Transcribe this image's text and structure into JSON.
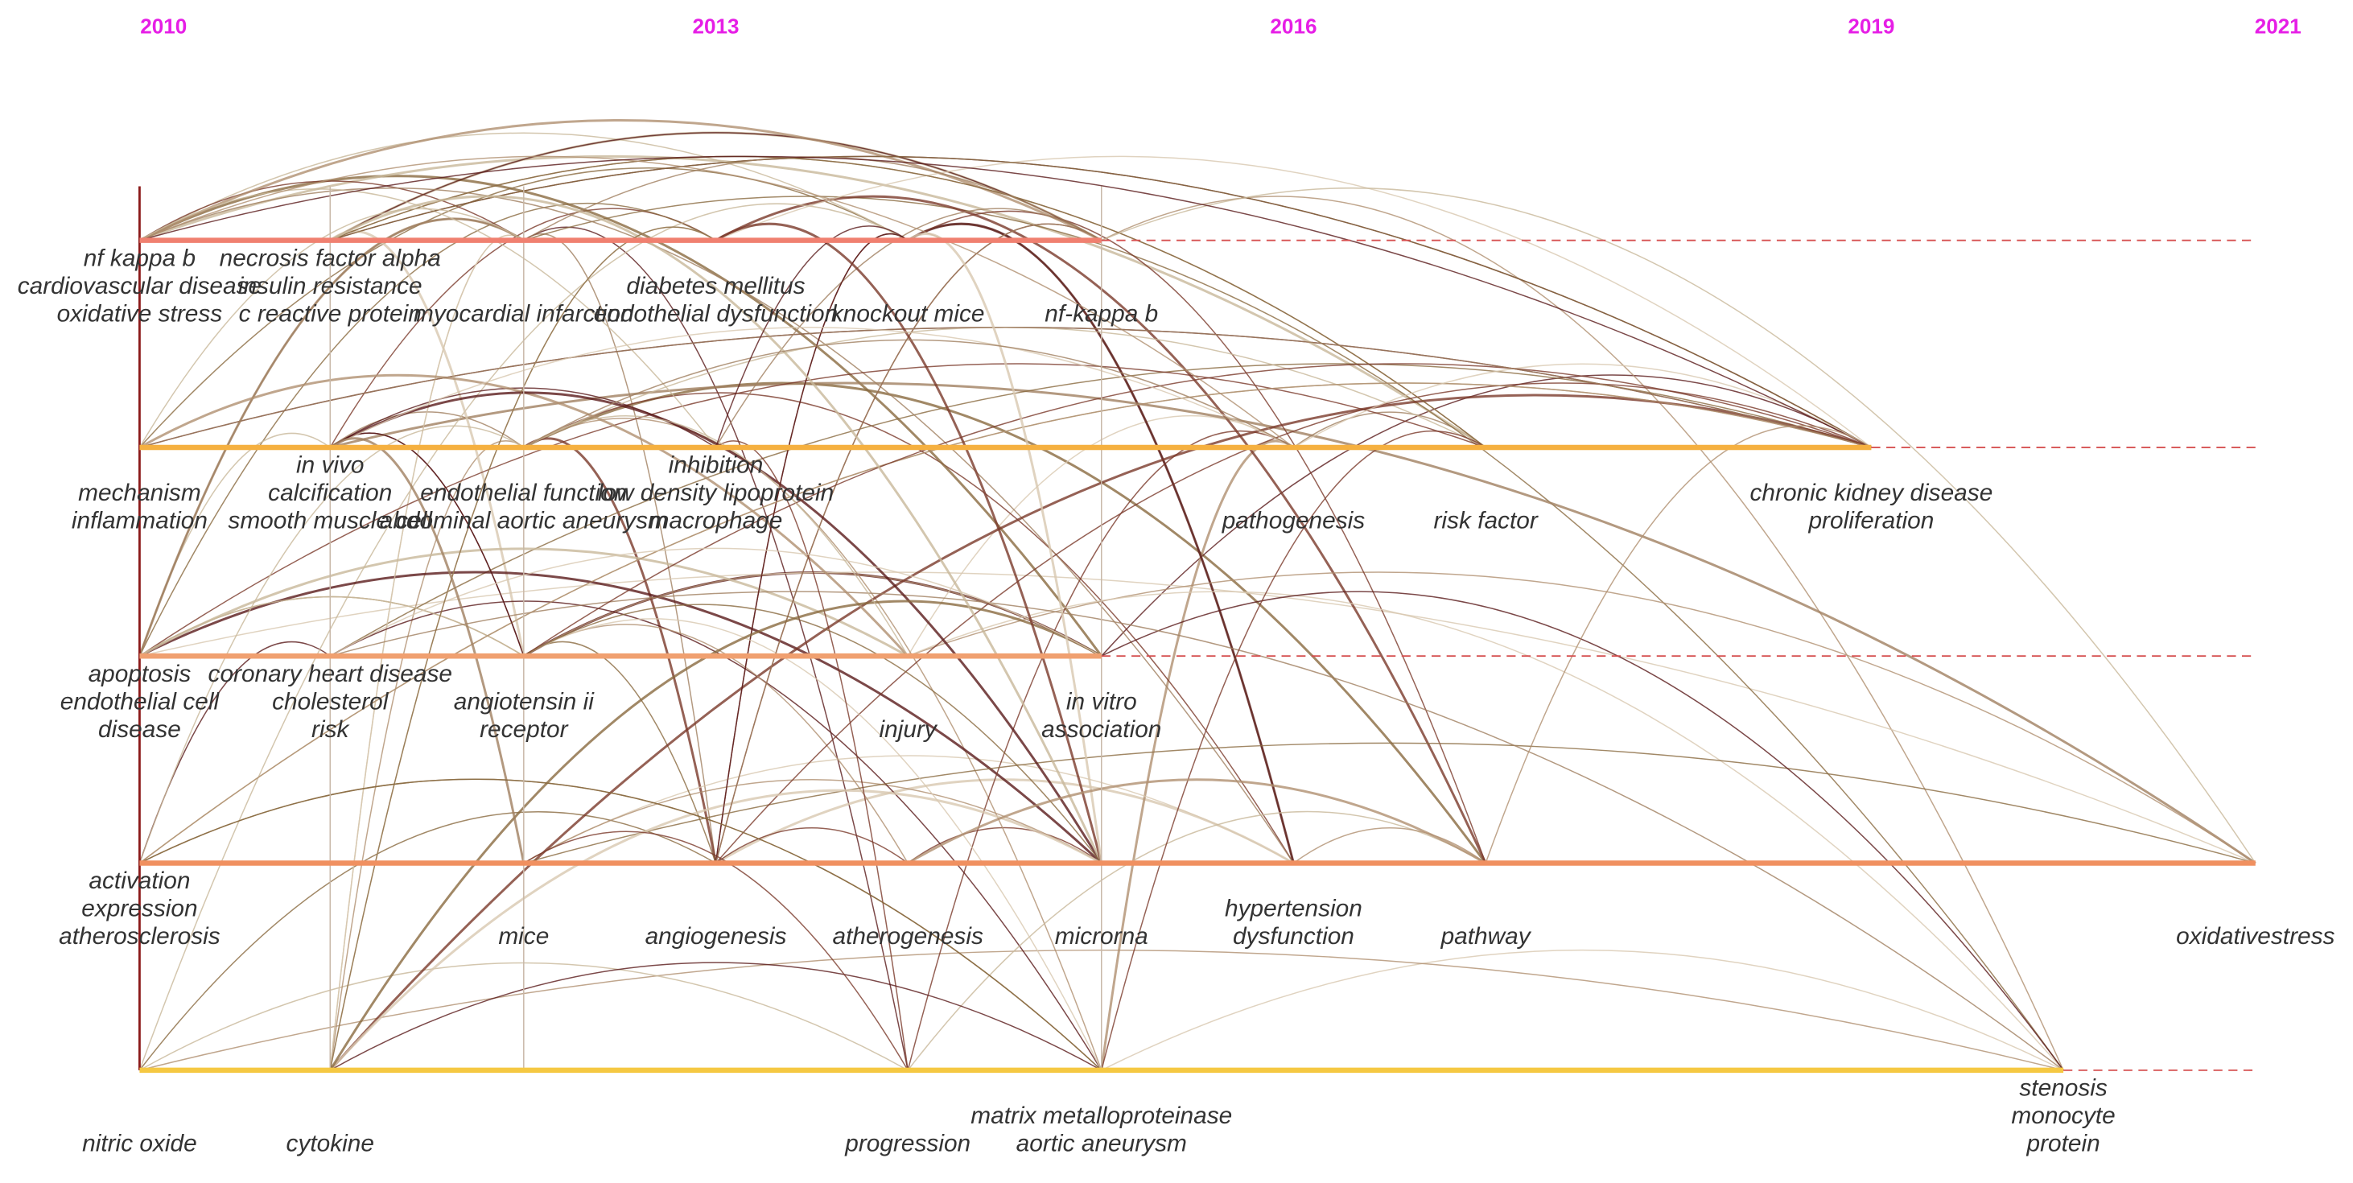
{
  "years": [
    "2010",
    "2013",
    "2016",
    "2019",
    "2021"
  ],
  "clusters": [
    {
      "nodes": [
        {
          "labels": [
            "nf kappa b",
            "cardiovascular disease",
            "oxidative stress"
          ]
        },
        {
          "labels": [
            "necrosis factor alpha",
            "insulin resistance",
            "c reactive protein"
          ]
        },
        {
          "labels": [
            "myocardial infarction"
          ]
        },
        {
          "labels": [
            "diabetes mellitus",
            "endothelial dysfunction"
          ]
        },
        {
          "labels": [
            "knockout mice"
          ]
        },
        {
          "labels": [
            "nf-kappa b"
          ]
        }
      ]
    },
    {
      "nodes": [
        {
          "labels": [
            "mechanism",
            "inflammation"
          ]
        },
        {
          "labels": [
            "in vivo",
            "calcification",
            "smooth muscle cell"
          ]
        },
        {
          "labels": [
            "endothelial function",
            "abdominal aortic aneurysm"
          ]
        },
        {
          "labels": [
            "inhibition",
            "low density lipoprotein",
            "macrophage"
          ]
        },
        {
          "labels": [
            "pathogenesis"
          ]
        },
        {
          "labels": [
            "risk factor"
          ]
        },
        {
          "labels": [
            "chronic kidney disease",
            "proliferation"
          ]
        }
      ]
    },
    {
      "nodes": [
        {
          "labels": [
            "apoptosis",
            "endothelial cell",
            "disease"
          ]
        },
        {
          "labels": [
            "coronary heart disease",
            "cholesterol",
            "risk"
          ]
        },
        {
          "labels": [
            "angiotensin ii",
            "receptor"
          ]
        },
        {
          "labels": [
            "injury"
          ]
        },
        {
          "labels": [
            "in vitro",
            "association"
          ]
        }
      ]
    },
    {
      "nodes": [
        {
          "labels": [
            "activation",
            "expression",
            "atherosclerosis"
          ]
        },
        {
          "labels": [
            "mice"
          ]
        },
        {
          "labels": [
            "angiogenesis"
          ]
        },
        {
          "labels": [
            "atherogenesis"
          ]
        },
        {
          "labels": [
            "microrna"
          ]
        },
        {
          "labels": [
            "hypertension",
            "dysfunction"
          ]
        },
        {
          "labels": [
            "pathway"
          ]
        },
        {
          "labels": [
            "oxidativestress"
          ]
        }
      ]
    },
    {
      "nodes": [
        {
          "labels": [
            "nitric oxide"
          ]
        },
        {
          "labels": [
            "cytokine"
          ]
        },
        {
          "labels": [
            "progression"
          ]
        },
        {
          "labels": [
            "matrix metalloproteinase",
            "aortic aneurysm"
          ]
        },
        {
          "labels": [
            "stenosis",
            "monocyte",
            "protein"
          ]
        }
      ]
    }
  ]
}
